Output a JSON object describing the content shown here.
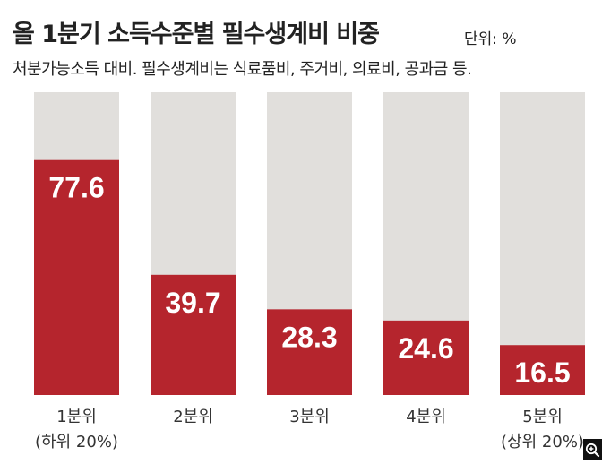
{
  "header": {
    "title": "올 1분기 소득수준별 필수생계비 비중",
    "unit": "단위: %",
    "subtitle": "처분가능소득 대비. 필수생계비는 식료품비, 주거비, 의료비, 공과금 등."
  },
  "colors": {
    "bar": "#b5252d",
    "background_bar": "#e1dfdc"
  },
  "chart_data": {
    "type": "bar",
    "title": "올 1분기 소득수준별 필수생계비 비중",
    "unit": "%",
    "categories": [
      [
        "1분위",
        "(하위 20%)"
      ],
      [
        "2분위"
      ],
      [
        "3분위"
      ],
      [
        "4분위"
      ],
      [
        "5분위",
        "(상위 20%)"
      ]
    ],
    "values": [
      77.6,
      39.7,
      28.3,
      24.6,
      16.5
    ],
    "ylim": [
      0,
      100
    ],
    "grid": false
  },
  "overlay": {
    "icon": "zoom-in-icon"
  }
}
